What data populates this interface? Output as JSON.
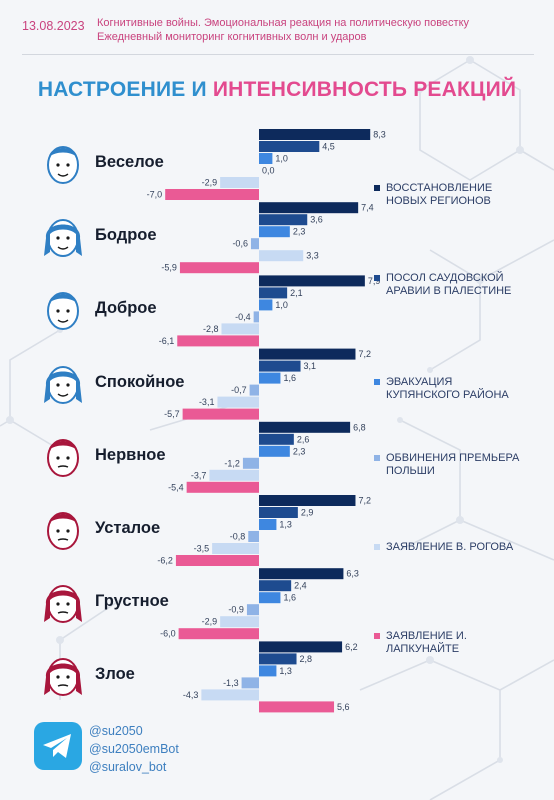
{
  "header": {
    "date": "13.08.2023",
    "subtitle_line1": "Когнитивные войны. Эмоциональная реакция на политическую повестку",
    "subtitle_line2": "Ежедневный мониторинг когнитивных волн и ударов"
  },
  "title_part1": "НАСТРОЕНИЕ И",
  "title_part2": "ИНТЕНСИВНОСТЬ РЕАКЦИЙ",
  "colors": {
    "series": [
      "#0d2a5c",
      "#1e4b8f",
      "#3e87e0",
      "#8fb3e6",
      "#c7daf3",
      "#ea5a95"
    ],
    "blue_face": "#2f7fc4",
    "red_face": "#a8163c",
    "telegram": "#2aa7e3"
  },
  "chart_data": {
    "type": "bar",
    "orientation": "horizontal",
    "categories": [
      "Веселое",
      "Бодрое",
      "Доброе",
      "Спокойное",
      "Нервное",
      "Усталое",
      "Грустное",
      "Злое"
    ],
    "category_icons": [
      "smiling-face-icon",
      "happy-woman-face-icon",
      "kind-face-icon",
      "calm-woman-face-icon",
      "nervous-face-icon",
      "tired-face-icon",
      "sad-woman-face-icon",
      "angry-woman-face-icon"
    ],
    "series": [
      {
        "name": "ВОССТАНОВЛЕНИЕ НОВЫХ РЕГИОНОВ",
        "values": [
          8.3,
          7.4,
          7.9,
          7.2,
          6.8,
          7.2,
          6.3,
          6.2
        ]
      },
      {
        "name": "ПОСОЛ САУДОВСКОЙ АРАВИИ В ПАЛЕСТИНЕ",
        "values": [
          4.5,
          3.6,
          2.1,
          3.1,
          2.6,
          2.9,
          2.4,
          2.8
        ]
      },
      {
        "name": "ЭВАКУАЦИЯ КУПЯНСКОГО РАЙОНА",
        "values": [
          1.0,
          2.3,
          1.0,
          1.6,
          2.3,
          1.3,
          1.6,
          1.3
        ]
      },
      {
        "name": "ОБВИНЕНИЯ ПРЕМЬЕРА ПОЛЬШИ",
        "values": [
          0.0,
          -0.6,
          -0.4,
          -0.7,
          -1.2,
          -0.8,
          -0.9,
          -1.3
        ]
      },
      {
        "name": "ЗАЯВЛЕНИЕ В. РОГОВА",
        "values": [
          -2.9,
          3.3,
          -2.8,
          -3.1,
          -3.7,
          -3.5,
          -2.9,
          -4.3
        ]
      },
      {
        "name": "ЗАЯВЛЕНИЕ И. ЛАПКУНАЙТЕ",
        "values": [
          -7.0,
          -5.9,
          -6.1,
          -5.7,
          -5.4,
          -6.2,
          -6.0,
          5.6
        ]
      }
    ],
    "value_labels": [
      [
        "8,3",
        "4,5",
        "1,0",
        "0,0",
        "-2,9",
        "-7,0"
      ],
      [
        "7,4",
        "3,6",
        "2,3",
        "-0,6",
        "3,3",
        "-5,9"
      ],
      [
        "7,9",
        "2,1",
        "1,0",
        "-0,4",
        "-2,8",
        "-6,1"
      ],
      [
        "7,2",
        "3,1",
        "1,6",
        "-0,7",
        "-3,1",
        "-5,7"
      ],
      [
        "6,8",
        "2,6",
        "2,3",
        "-1,2",
        "-3,7",
        "-5,4"
      ],
      [
        "7,2",
        "2,9",
        "1,3",
        "-0,8",
        "-3,5",
        "-6,2"
      ],
      [
        "6,3",
        "2,4",
        "1,6",
        "-0,9",
        "-2,9",
        "-6,0"
      ],
      [
        "6,2",
        "2,8",
        "1,3",
        "-1,3",
        "-4,3",
        "5,6"
      ]
    ],
    "xlim": [
      -7.5,
      9
    ],
    "legend_position": "right"
  },
  "contacts": [
    "@su2050",
    "@su2050emBot",
    "@suralov_bot"
  ]
}
